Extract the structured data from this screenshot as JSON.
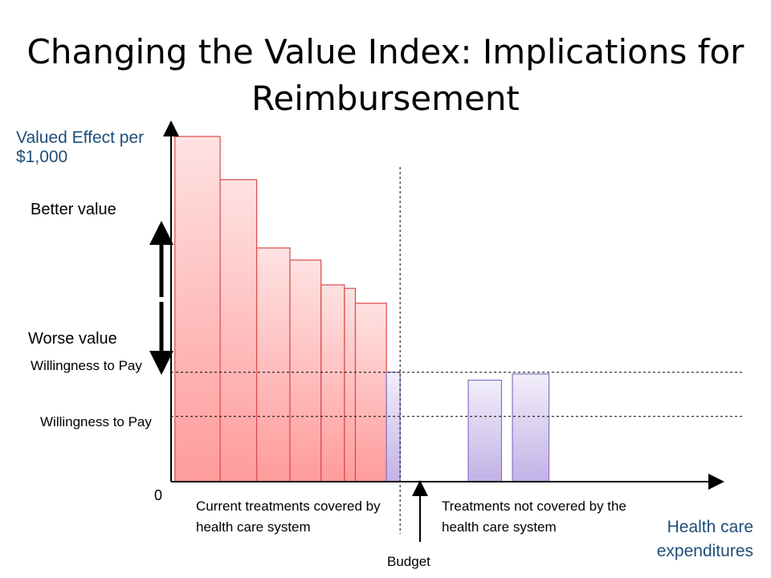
{
  "title": "Changing the Value Index: Implications for Reimbursement",
  "labels": {
    "y_axis": "Valued Effect per $1,000",
    "better": "Better value",
    "worse": "Worse value",
    "wtp_high": "Willingness to Pay",
    "wtp_low": "Willingness to Pay",
    "zero": "0",
    "covered": "Current treatments covered by health care system",
    "not_covered": "Treatments not covered by the health care system",
    "budget": "Budget",
    "x_axis": "Health care expenditures"
  },
  "colors": {
    "covered_top": "#FFE2E2",
    "covered_bottom": "#FF9B9B",
    "covered_stroke": "#D94A4A",
    "uncovered_top": "#F2EEFA",
    "uncovered_bottom": "#C2B2E6",
    "uncovered_stroke": "#8A72C4",
    "text_blue": "#1F4E79"
  },
  "chart_data": {
    "type": "bar",
    "note_units": "relative value per $1,000 (0-100); expenditures cumulative (0-100)",
    "covered": [
      {
        "start": 0.7,
        "end": 9.0,
        "value": 100
      },
      {
        "start": 9.0,
        "end": 15.7,
        "value": 87.5
      },
      {
        "start": 15.7,
        "end": 21.8,
        "value": 67.7
      },
      {
        "start": 21.8,
        "end": 27.5,
        "value": 64.2
      },
      {
        "start": 27.5,
        "end": 31.8,
        "value": 57.0
      },
      {
        "start": 31.8,
        "end": 33.8,
        "value": 56.0
      },
      {
        "start": 33.8,
        "end": 39.5,
        "value": 51.7
      }
    ],
    "covered_marginal": {
      "start": 39.5,
      "end": 42.0,
      "value": 31.7
    },
    "not_covered": [
      {
        "start": 54.5,
        "end": 60.6,
        "value": 29.4
      },
      {
        "start": 62.6,
        "end": 69.3,
        "value": 31.2
      }
    ],
    "willingness_to_pay": [
      31.7,
      18.9
    ],
    "budget": 42.0,
    "xlim": [
      0,
      100
    ],
    "ylim": [
      0,
      100
    ]
  }
}
